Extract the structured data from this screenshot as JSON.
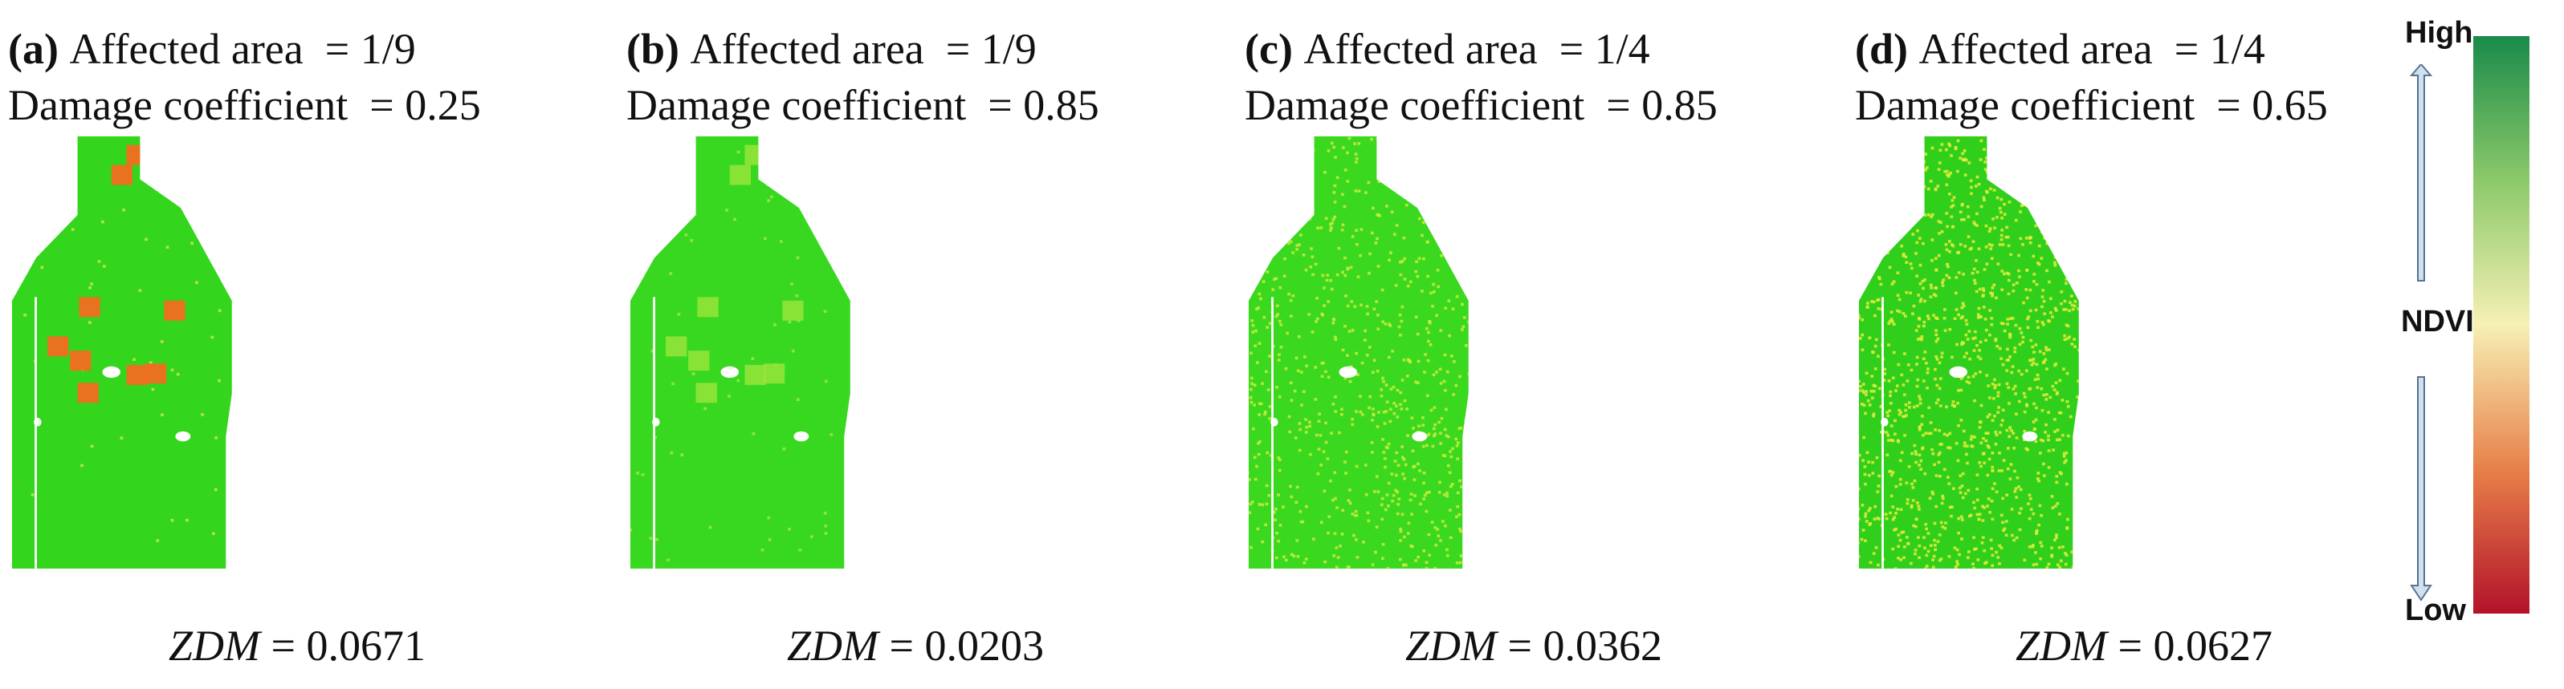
{
  "panels": [
    {
      "letter": "(a)",
      "area_label": "Affected area",
      "area_value": "= 1/9",
      "coef_label": "Damage coefficient",
      "coef_value": "= 0.25",
      "zdm_symbol": "ZDM",
      "zdm_value": "= 0.0671",
      "patch_color": "#f26d21",
      "patch_opacity": 0.95,
      "speckle_density": 0.02,
      "speckle_color": "#c7e84a",
      "base_color": "#33d61c"
    },
    {
      "letter": "(b)",
      "area_label": "Affected area",
      "area_value": "= 1/9",
      "coef_label": "Damage coefficient",
      "coef_value": "= 0.85",
      "zdm_symbol": "ZDM",
      "zdm_value": "= 0.0203",
      "patch_color": "#9ce63c",
      "patch_opacity": 0.8,
      "speckle_density": 0.03,
      "speckle_color": "#9fe64a",
      "base_color": "#39d820"
    },
    {
      "letter": "(c)",
      "area_label": "Affected area",
      "area_value": "= 1/4",
      "coef_label": "Damage coefficient",
      "coef_value": "= 0.85",
      "zdm_symbol": "ZDM",
      "zdm_value": "= 0.0362",
      "patch_color": "#a6e440",
      "patch_opacity": 0.0,
      "speckle_density": 0.35,
      "speckle_color": "#c9ec3c",
      "base_color": "#3ad81f"
    },
    {
      "letter": "(d)",
      "area_label": "Affected area",
      "area_value": "= 1/4",
      "coef_label": "Damage coefficient",
      "coef_value": "= 0.65",
      "zdm_symbol": "ZDM",
      "zdm_value": "= 0.0627",
      "patch_color": "#b8e442",
      "patch_opacity": 0.0,
      "speckle_density": 0.6,
      "speckle_color": "#e4ec3a",
      "base_color": "#2fcf1c"
    }
  ],
  "legend": {
    "high": "High",
    "mid": "NDVI",
    "low": "Low",
    "colors": [
      "#1a8a4a",
      "#8cc96a",
      "#f6f0b4",
      "#e8804a",
      "#b3122a"
    ]
  }
}
